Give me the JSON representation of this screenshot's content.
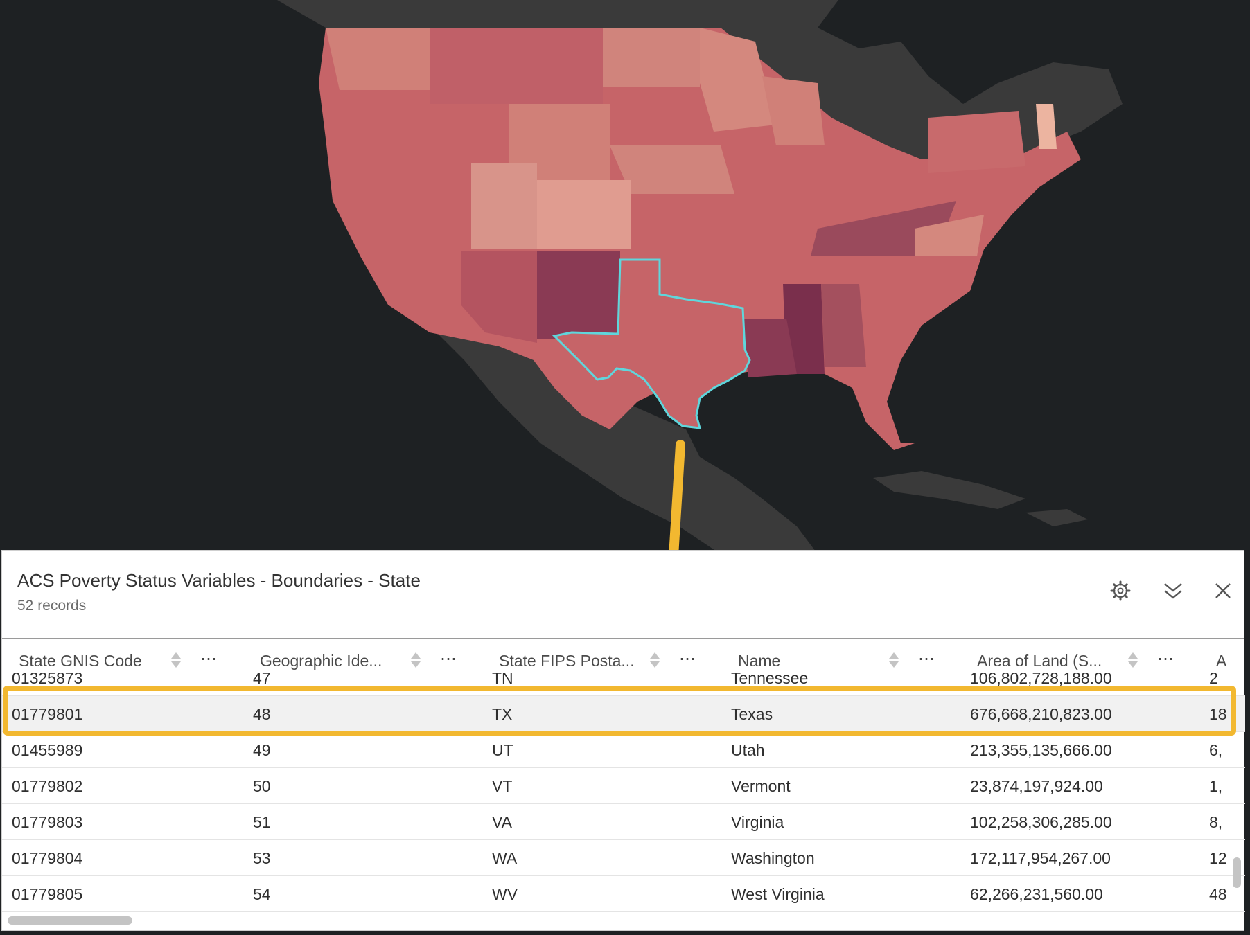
{
  "panel": {
    "title": "ACS Poverty Status Variables - Boundaries - State",
    "record_count": "52 records",
    "icons": [
      "gear-icon",
      "collapse-icon",
      "close-icon"
    ]
  },
  "columns": [
    {
      "label": "State GNIS Code"
    },
    {
      "label": "Geographic Ide..."
    },
    {
      "label": "State FIPS Posta..."
    },
    {
      "label": "Name"
    },
    {
      "label": "Area of Land (S..."
    },
    {
      "label": "A"
    }
  ],
  "rows": [
    {
      "cells": [
        "01325873",
        "47",
        "TN",
        "Tennessee",
        "106,802,728,188.00",
        "2"
      ]
    },
    {
      "cells": [
        "01779801",
        "48",
        "TX",
        "Texas",
        "676,668,210,823.00",
        "18"
      ],
      "selected": true
    },
    {
      "cells": [
        "01455989",
        "49",
        "UT",
        "Utah",
        "213,355,135,666.00",
        "6,"
      ]
    },
    {
      "cells": [
        "01779802",
        "50",
        "VT",
        "Vermont",
        "23,874,197,924.00",
        "1,"
      ]
    },
    {
      "cells": [
        "01779803",
        "51",
        "VA",
        "Virginia",
        "102,258,306,285.00",
        "8,"
      ]
    },
    {
      "cells": [
        "01779804",
        "53",
        "WA",
        "Washington",
        "172,117,954,267.00",
        "12"
      ]
    },
    {
      "cells": [
        "01779805",
        "54",
        "WV",
        "West Virginia",
        "62,266,231,560.00",
        "48"
      ]
    }
  ],
  "colors": {
    "basemap_land": "#3a3a3a",
    "basemap_water": "#1e2123",
    "choropleth_light": "#e0a090",
    "choropleth_mid": "#c66468",
    "choropleth_dark": "#7a2f4c",
    "selection_outline": "#5fd6dc",
    "callout": "#f2b830"
  }
}
